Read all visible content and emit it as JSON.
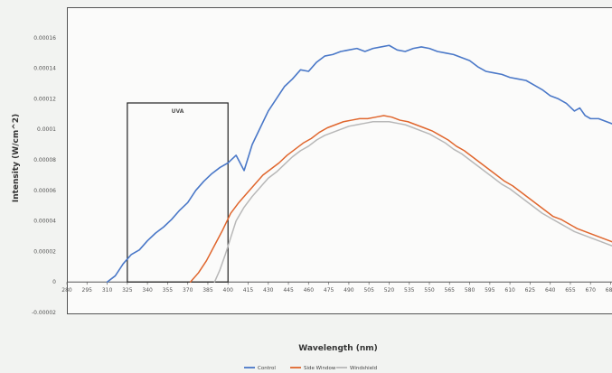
{
  "chart_data": {
    "type": "line",
    "title": "",
    "xlabel": "Wavelength (nm)",
    "ylabel": "Intensity (W/cm^2)",
    "x_ticks": [
      280,
      295,
      310,
      325,
      340,
      355,
      370,
      385,
      400,
      415,
      430,
      445,
      460,
      475,
      490,
      505,
      520,
      535,
      550,
      565,
      580,
      595,
      610,
      625,
      640,
      655,
      670,
      685
    ],
    "y_ticks": [
      "0.00016",
      "0.00014",
      "0.00012",
      "0.0001",
      "0.00008",
      "0.00006",
      "0.00004",
      "0.00002",
      "0",
      "-0.00002"
    ],
    "ylim": [
      -2e-05,
      0.00018
    ],
    "annotation": {
      "label": "UVA",
      "x_start": 325,
      "x_end": 400
    },
    "series": [
      {
        "name": "Control",
        "color": "#4a78c8",
        "points": [
          [
            310,
            0
          ],
          [
            316,
            4e-06
          ],
          [
            322,
            1.2e-05
          ],
          [
            328,
            1.8e-05
          ],
          [
            334,
            2.1e-05
          ],
          [
            340,
            2.7e-05
          ],
          [
            346,
            3.2e-05
          ],
          [
            352,
            3.6e-05
          ],
          [
            358,
            4.1e-05
          ],
          [
            364,
            4.7e-05
          ],
          [
            370,
            5.2e-05
          ],
          [
            376,
            6e-05
          ],
          [
            382,
            6.6e-05
          ],
          [
            388,
            7.1e-05
          ],
          [
            394,
            7.5e-05
          ],
          [
            400,
            7.8e-05
          ],
          [
            406,
            8.3e-05
          ],
          [
            412,
            7.3e-05
          ],
          [
            418,
            9e-05
          ],
          [
            424,
            0.000101
          ],
          [
            430,
            0.000112
          ],
          [
            436,
            0.00012
          ],
          [
            442,
            0.000128
          ],
          [
            448,
            0.000133
          ],
          [
            454,
            0.000139
          ],
          [
            460,
            0.000138
          ],
          [
            466,
            0.000144
          ],
          [
            472,
            0.000148
          ],
          [
            478,
            0.000149
          ],
          [
            484,
            0.000151
          ],
          [
            490,
            0.000152
          ],
          [
            496,
            0.000153
          ],
          [
            502,
            0.000151
          ],
          [
            508,
            0.000153
          ],
          [
            514,
            0.000154
          ],
          [
            520,
            0.000155
          ],
          [
            526,
            0.000152
          ],
          [
            532,
            0.000151
          ],
          [
            538,
            0.000153
          ],
          [
            544,
            0.000154
          ],
          [
            550,
            0.000153
          ],
          [
            556,
            0.000151
          ],
          [
            562,
            0.00015
          ],
          [
            568,
            0.000149
          ],
          [
            574,
            0.000147
          ],
          [
            580,
            0.000145
          ],
          [
            586,
            0.000141
          ],
          [
            592,
            0.000138
          ],
          [
            598,
            0.000137
          ],
          [
            604,
            0.000136
          ],
          [
            610,
            0.000134
          ],
          [
            616,
            0.000133
          ],
          [
            622,
            0.000132
          ],
          [
            628,
            0.000129
          ],
          [
            634,
            0.000126
          ],
          [
            640,
            0.000122
          ],
          [
            646,
            0.00012
          ],
          [
            652,
            0.000117
          ],
          [
            658,
            0.000112
          ],
          [
            662,
            0.000114
          ],
          [
            666,
            0.000109
          ],
          [
            670,
            0.000107
          ],
          [
            676,
            0.000107
          ],
          [
            682,
            0.000105
          ],
          [
            688,
            0.000103
          ]
        ]
      },
      {
        "name": "Side Window",
        "color": "#e0662d",
        "points": [
          [
            372,
            0
          ],
          [
            378,
            6e-06
          ],
          [
            384,
            1.4e-05
          ],
          [
            390,
            2.4e-05
          ],
          [
            396,
            3.4e-05
          ],
          [
            402,
            4.5e-05
          ],
          [
            408,
            5.2e-05
          ],
          [
            414,
            5.8e-05
          ],
          [
            420,
            6.4e-05
          ],
          [
            426,
            7e-05
          ],
          [
            432,
            7.4e-05
          ],
          [
            438,
            7.8e-05
          ],
          [
            444,
            8.3e-05
          ],
          [
            450,
            8.7e-05
          ],
          [
            456,
            9.1e-05
          ],
          [
            462,
            9.4e-05
          ],
          [
            468,
            9.8e-05
          ],
          [
            474,
            0.000101
          ],
          [
            480,
            0.000103
          ],
          [
            486,
            0.000105
          ],
          [
            492,
            0.000106
          ],
          [
            498,
            0.000107
          ],
          [
            504,
            0.000107
          ],
          [
            510,
            0.000108
          ],
          [
            516,
            0.000109
          ],
          [
            522,
            0.000108
          ],
          [
            528,
            0.000106
          ],
          [
            534,
            0.000105
          ],
          [
            540,
            0.000103
          ],
          [
            546,
            0.000101
          ],
          [
            552,
            9.9e-05
          ],
          [
            558,
            9.6e-05
          ],
          [
            564,
            9.3e-05
          ],
          [
            570,
            8.9e-05
          ],
          [
            576,
            8.6e-05
          ],
          [
            582,
            8.2e-05
          ],
          [
            588,
            7.8e-05
          ],
          [
            594,
            7.4e-05
          ],
          [
            600,
            7e-05
          ],
          [
            606,
            6.6e-05
          ],
          [
            612,
            6.3e-05
          ],
          [
            618,
            5.9e-05
          ],
          [
            624,
            5.5e-05
          ],
          [
            630,
            5.1e-05
          ],
          [
            636,
            4.7e-05
          ],
          [
            642,
            4.3e-05
          ],
          [
            648,
            4.1e-05
          ],
          [
            654,
            3.8e-05
          ],
          [
            660,
            3.5e-05
          ],
          [
            666,
            3.3e-05
          ],
          [
            672,
            3.1e-05
          ],
          [
            678,
            2.9e-05
          ],
          [
            684,
            2.7e-05
          ],
          [
            690,
            2.5e-05
          ]
        ]
      },
      {
        "name": "Windshield",
        "color": "#b8b8b8",
        "points": [
          [
            390,
            0
          ],
          [
            394,
            8e-06
          ],
          [
            398,
            1.8e-05
          ],
          [
            402,
            2.9e-05
          ],
          [
            406,
            4e-05
          ],
          [
            412,
            4.9e-05
          ],
          [
            418,
            5.6e-05
          ],
          [
            424,
            6.2e-05
          ],
          [
            430,
            6.8e-05
          ],
          [
            436,
            7.2e-05
          ],
          [
            442,
            7.7e-05
          ],
          [
            448,
            8.2e-05
          ],
          [
            454,
            8.6e-05
          ],
          [
            460,
            8.9e-05
          ],
          [
            466,
            9.3e-05
          ],
          [
            472,
            9.6e-05
          ],
          [
            478,
            9.8e-05
          ],
          [
            484,
            0.0001
          ],
          [
            490,
            0.000102
          ],
          [
            496,
            0.000103
          ],
          [
            502,
            0.000104
          ],
          [
            508,
            0.000105
          ],
          [
            514,
            0.000105
          ],
          [
            520,
            0.000105
          ],
          [
            526,
            0.000104
          ],
          [
            532,
            0.000103
          ],
          [
            538,
            0.000101
          ],
          [
            544,
            9.9e-05
          ],
          [
            550,
            9.7e-05
          ],
          [
            556,
            9.4e-05
          ],
          [
            562,
            9.1e-05
          ],
          [
            568,
            8.7e-05
          ],
          [
            574,
            8.4e-05
          ],
          [
            580,
            8e-05
          ],
          [
            586,
            7.6e-05
          ],
          [
            592,
            7.2e-05
          ],
          [
            598,
            6.8e-05
          ],
          [
            604,
            6.4e-05
          ],
          [
            610,
            6.1e-05
          ],
          [
            616,
            5.7e-05
          ],
          [
            622,
            5.3e-05
          ],
          [
            628,
            4.9e-05
          ],
          [
            634,
            4.5e-05
          ],
          [
            640,
            4.2e-05
          ],
          [
            646,
            3.9e-05
          ],
          [
            652,
            3.6e-05
          ],
          [
            658,
            3.3e-05
          ],
          [
            664,
            3.1e-05
          ],
          [
            670,
            2.9e-05
          ],
          [
            676,
            2.7e-05
          ],
          [
            682,
            2.5e-05
          ],
          [
            688,
            2.3e-05
          ]
        ]
      }
    ]
  }
}
